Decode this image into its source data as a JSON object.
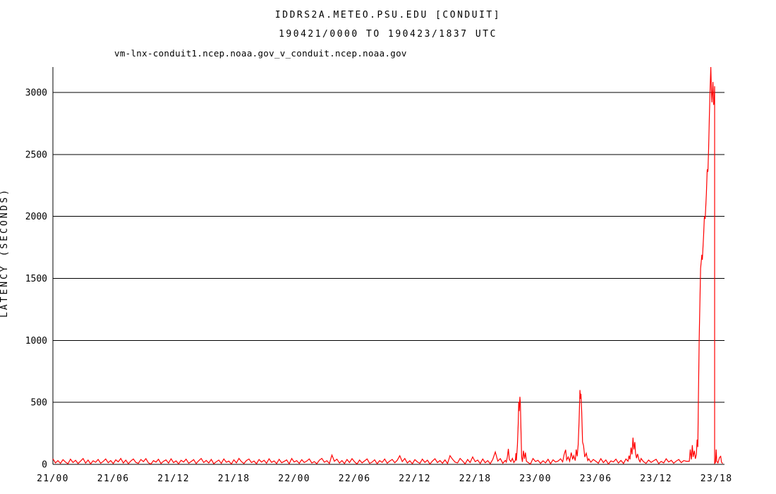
{
  "page": {
    "background": "#ffffff"
  },
  "chart_data": {
    "type": "line",
    "title": "IDDRS2A.METEO.PSU.EDU [CONDUIT]",
    "subtitle": "190421/0000 TO 190423/1837 UTC",
    "legend_series": "vm-lnx-conduit1.ncep.noaa.gov_v_conduit.ncep.noaa.gov",
    "ylabel": "LATENCY (SECONDS)",
    "xlabel": "",
    "series_color": "#ff0000",
    "axis_color": "#000000",
    "grid": "horizontal-only",
    "legend_position": "top-left",
    "x_unit": "hours since 2019-04-21 0000 UTC",
    "xlim": [
      0,
      66.8
    ],
    "ylim": [
      0,
      3300
    ],
    "y_ticks": [
      0,
      500,
      1000,
      1500,
      2000,
      2500,
      3000
    ],
    "x_ticks": [
      {
        "t": 0,
        "label": "21/00"
      },
      {
        "t": 6,
        "label": "21/06"
      },
      {
        "t": 12,
        "label": "21/12"
      },
      {
        "t": 18,
        "label": "21/18"
      },
      {
        "t": 24,
        "label": "22/00"
      },
      {
        "t": 30,
        "label": "22/06"
      },
      {
        "t": 36,
        "label": "22/12"
      },
      {
        "t": 42,
        "label": "22/18"
      },
      {
        "t": 48,
        "label": "23/00"
      },
      {
        "t": 54,
        "label": "23/06"
      },
      {
        "t": 60,
        "label": "23/12"
      },
      {
        "t": 66,
        "label": "23/18"
      }
    ],
    "baseline": {
      "start_h": 0,
      "dt_h": 0.25,
      "values": [
        45,
        12,
        30,
        8,
        38,
        18,
        5,
        42,
        15,
        33,
        7,
        26,
        47,
        10,
        35,
        4,
        29,
        17,
        40,
        9,
        24,
        44,
        13,
        31,
        6,
        37,
        20,
        48,
        11,
        34,
        5,
        27,
        43,
        16,
        8,
        39,
        22,
        46,
        12,
        3,
        30,
        18,
        41,
        7,
        25,
        36,
        10,
        45,
        14,
        28,
        4,
        33,
        19,
        42,
        9,
        23,
        38,
        6,
        29,
        47,
        15,
        32,
        11,
        40,
        5,
        21,
        35,
        8,
        44,
        17,
        26,
        3,
        37,
        12,
        48,
        22,
        7,
        31,
        43,
        14,
        27,
        5,
        39,
        18,
        33,
        9,
        45,
        16,
        28,
        6,
        41,
        13,
        24,
        36,
        4,
        47,
        19,
        30,
        8,
        38,
        15,
        27,
        44,
        11,
        22,
        5,
        34,
        48,
        17,
        29,
        7,
        75,
        25,
        42,
        10,
        31,
        6,
        39,
        14,
        46,
        21,
        3,
        35,
        12,
        28,
        44,
        8,
        18,
        37,
        5,
        30,
        16,
        43,
        9,
        26,
        40,
        13,
        33,
        70,
        22,
        47,
        11,
        29,
        5,
        38,
        20,
        8,
        42,
        16,
        34,
        3,
        27,
        45,
        14,
        31,
        9,
        36,
        6,
        70,
        41,
        18,
        12,
        48,
        28,
        4,
        39,
        15,
        60,
        22,
        35,
        7,
        43,
        13,
        30,
        5,
        40,
        100,
        26,
        46,
        9,
        32,
        14,
        38,
        6,
        28,
        21,
        44,
        10,
        36,
        16,
        3,
        47,
        23,
        33,
        8,
        29,
        12,
        41,
        5,
        37,
        19,
        27,
        45,
        8,
        31,
        15,
        39,
        4,
        23,
        43,
        11,
        34,
        6,
        30,
        17,
        40,
        25,
        9,
        46,
        14,
        36,
        3,
        28,
        20,
        42,
        10,
        32,
        7,
        44,
        18,
        26,
        5,
        38,
        13,
        47,
        21,
        8,
        35,
        16,
        29,
        41,
        6,
        24,
        12,
        45,
        19,
        33,
        9,
        27,
        39,
        14,
        31,
        25
      ]
    },
    "spike_segments": [
      {
        "name": "spike-22-2230utc",
        "points": [
          [
            45.1,
            18
          ],
          [
            45.2,
            60
          ],
          [
            45.3,
            125
          ],
          [
            45.4,
            40
          ],
          [
            45.55,
            22
          ],
          [
            45.7,
            48
          ],
          [
            45.85,
            15
          ],
          [
            46.0,
            35
          ],
          [
            46.05,
            90
          ],
          [
            46.1,
            30
          ],
          [
            46.2,
            150
          ],
          [
            46.28,
            330
          ],
          [
            46.33,
            505
          ],
          [
            46.38,
            430
          ],
          [
            46.45,
            545
          ],
          [
            46.5,
            480
          ],
          [
            46.55,
            300
          ],
          [
            46.62,
            60
          ],
          [
            46.7,
            20
          ],
          [
            46.8,
            110
          ],
          [
            46.9,
            45
          ],
          [
            47.0,
            95
          ],
          [
            47.1,
            25
          ]
        ]
      },
      {
        "name": "spike-23-0425utc",
        "points": [
          [
            50.7,
            20
          ],
          [
            50.85,
            80
          ],
          [
            51.0,
            118
          ],
          [
            51.1,
            35
          ],
          [
            51.25,
            60
          ],
          [
            51.4,
            25
          ],
          [
            51.55,
            95
          ],
          [
            51.7,
            40
          ],
          [
            51.8,
            70
          ],
          [
            51.95,
            30
          ],
          [
            52.05,
            120
          ],
          [
            52.15,
            65
          ],
          [
            52.25,
            160
          ],
          [
            52.33,
            340
          ],
          [
            52.42,
            600
          ],
          [
            52.47,
            530
          ],
          [
            52.52,
            570
          ],
          [
            52.6,
            420
          ],
          [
            52.68,
            180
          ],
          [
            52.78,
            150
          ],
          [
            52.9,
            60
          ],
          [
            53.05,
            90
          ],
          [
            53.2,
            30
          ],
          [
            53.3,
            45
          ]
        ]
      },
      {
        "name": "spike-23-0940utc",
        "points": [
          [
            57.2,
            25
          ],
          [
            57.3,
            70
          ],
          [
            57.4,
            40
          ],
          [
            57.5,
            135
          ],
          [
            57.6,
            80
          ],
          [
            57.7,
            215
          ],
          [
            57.78,
            120
          ],
          [
            57.88,
            180
          ],
          [
            57.95,
            90
          ],
          [
            58.05,
            50
          ],
          [
            58.15,
            85
          ],
          [
            58.3,
            35
          ],
          [
            58.4,
            20
          ]
        ]
      },
      {
        "name": "spike-23-1730utc-peak3205",
        "points": [
          [
            63.3,
            25
          ],
          [
            63.4,
            120
          ],
          [
            63.5,
            40
          ],
          [
            63.6,
            155
          ],
          [
            63.68,
            60
          ],
          [
            63.8,
            110
          ],
          [
            63.9,
            45
          ],
          [
            64.0,
            80
          ],
          [
            64.08,
            200
          ],
          [
            64.15,
            140
          ],
          [
            64.2,
            480
          ],
          [
            64.28,
            1000
          ],
          [
            64.42,
            1580
          ],
          [
            64.55,
            1690
          ],
          [
            64.6,
            1650
          ],
          [
            64.72,
            1850
          ],
          [
            64.8,
            2000
          ],
          [
            64.88,
            1980
          ],
          [
            65.0,
            2180
          ],
          [
            65.08,
            2380
          ],
          [
            65.15,
            2360
          ],
          [
            65.22,
            2550
          ],
          [
            65.3,
            2820
          ],
          [
            65.36,
            3010
          ],
          [
            65.4,
            3100
          ],
          [
            65.44,
            3205
          ],
          [
            65.5,
            3000
          ],
          [
            65.55,
            2920
          ],
          [
            65.65,
            3085
          ],
          [
            65.72,
            2900
          ],
          [
            65.78,
            2950
          ],
          [
            65.82,
            3050
          ],
          [
            65.82,
            8
          ],
          [
            65.9,
            15
          ],
          [
            65.97,
            120
          ],
          [
            66.03,
            25
          ],
          [
            66.15,
            12
          ],
          [
            66.3,
            55
          ],
          [
            66.42,
            65
          ],
          [
            66.5,
            18
          ],
          [
            66.62,
            6
          ]
        ]
      }
    ]
  }
}
